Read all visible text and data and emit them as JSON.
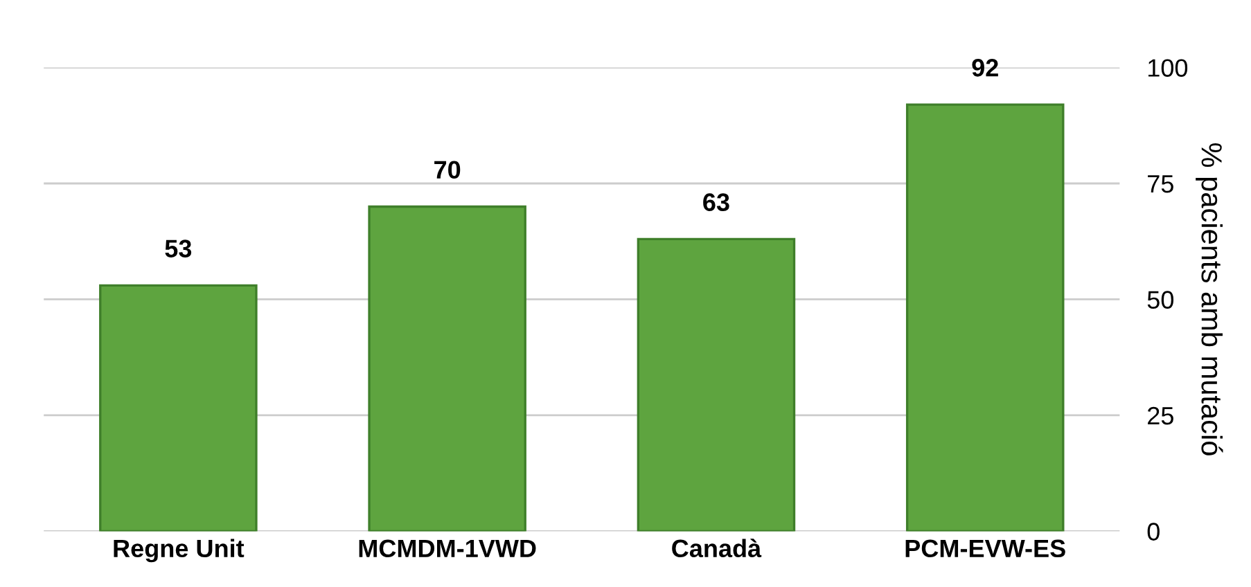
{
  "chart_data": {
    "type": "bar",
    "categories": [
      "Regne Unit",
      "MCMDM-1VWD",
      "Canadà",
      "PCM-EVW-ES"
    ],
    "values": [
      53,
      70,
      63,
      92
    ],
    "color": "#5ea43f",
    "ylabel": "% pacients amb mutació",
    "ylim": [
      0,
      100
    ],
    "yticks": [
      0,
      25,
      50,
      75,
      100
    ],
    "grid": "y",
    "data_labels": true
  }
}
